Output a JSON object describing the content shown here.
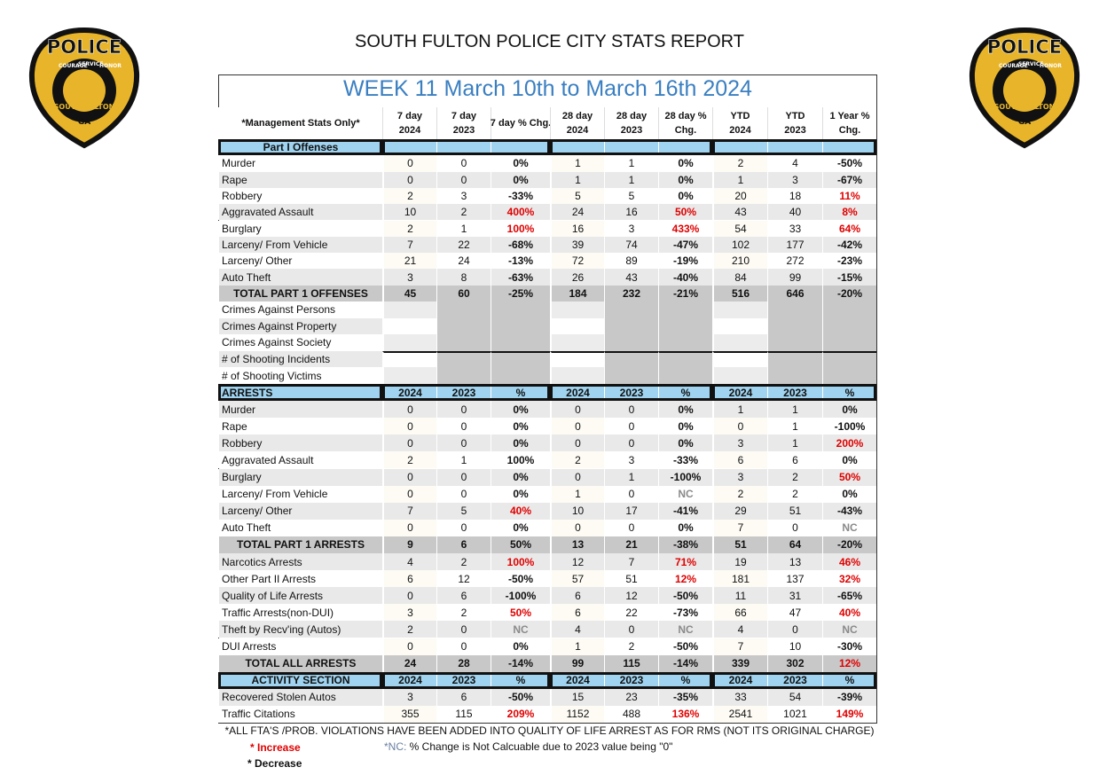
{
  "header": {
    "title": "SOUTH FULTON POLICE CITY STATS REPORT"
  },
  "logo": {
    "badge": "POLICE",
    "motto": [
      "COURAGE",
      "SERVICE",
      "HONOR"
    ],
    "city": "SOUTH FULTON",
    "state": "GA"
  },
  "table": {
    "week": "WEEK 11 March 10th to March 16th 2024",
    "corner": "*Management Stats Only*",
    "columns": [
      [
        "7 day",
        "2024"
      ],
      [
        "7 day",
        "2023"
      ],
      [
        "7 day % Chg."
      ],
      [
        "28 day",
        "2024"
      ],
      [
        "28 day",
        "2023"
      ],
      [
        "28 day %",
        "Chg."
      ],
      [
        "YTD",
        "2024"
      ],
      [
        "YTD",
        "2023"
      ],
      [
        "1 Year %",
        "Chg."
      ]
    ],
    "rows": [
      {
        "kind": "section",
        "label": "Part I Offenses",
        "cells": []
      },
      {
        "kind": "data",
        "label": "Murder",
        "cells": [
          "0",
          "0",
          "0%",
          "1",
          "1",
          "0%",
          "2",
          "4",
          "-50%"
        ]
      },
      {
        "kind": "data",
        "label": "Rape",
        "cells": [
          "0",
          "0",
          "0%",
          "1",
          "1",
          "0%",
          "1",
          "3",
          "-67%"
        ]
      },
      {
        "kind": "data",
        "label": "Robbery",
        "cells": [
          "2",
          "3",
          "-33%",
          "5",
          "5",
          "0%",
          "20",
          "18",
          "11%"
        ],
        "red": [
          8
        ]
      },
      {
        "kind": "data",
        "label": "Aggravated Assault",
        "cells": [
          "10",
          "2",
          "400%",
          "24",
          "16",
          "50%",
          "43",
          "40",
          "8%"
        ],
        "red": [
          2,
          5,
          8
        ]
      },
      {
        "kind": "data",
        "label": "Burglary",
        "cells": [
          "2",
          "1",
          "100%",
          "16",
          "3",
          "433%",
          "54",
          "33",
          "64%"
        ],
        "red": [
          2,
          5,
          8
        ]
      },
      {
        "kind": "data",
        "label": "Larceny/ From Vehicle",
        "cells": [
          "7",
          "22",
          "-68%",
          "39",
          "74",
          "-47%",
          "102",
          "177",
          "-42%"
        ]
      },
      {
        "kind": "data",
        "label": "Larceny/ Other",
        "cells": [
          "21",
          "24",
          "-13%",
          "72",
          "89",
          "-19%",
          "210",
          "272",
          "-23%"
        ]
      },
      {
        "kind": "data",
        "label": "Auto Theft",
        "cells": [
          "3",
          "8",
          "-63%",
          "26",
          "43",
          "-40%",
          "84",
          "99",
          "-15%"
        ]
      },
      {
        "kind": "total",
        "label": "TOTAL PART 1 OFFENSES",
        "cells": [
          "45",
          "60",
          "-25%",
          "184",
          "232",
          "-21%",
          "516",
          "646",
          "-20%"
        ]
      },
      {
        "kind": "blank",
        "label": "Crimes Against Persons",
        "cells": []
      },
      {
        "kind": "blank",
        "label": "Crimes Against Property",
        "cells": []
      },
      {
        "kind": "blank",
        "label": "Crimes Against Society",
        "cells": []
      },
      {
        "kind": "blank",
        "label": "# of Shooting Incidents",
        "cells": []
      },
      {
        "kind": "blank",
        "label": "# of Shooting Victims",
        "cells": []
      },
      {
        "kind": "section",
        "label": "ARRESTS",
        "cells": [
          "2024",
          "2023",
          "%",
          "2024",
          "2023",
          "%",
          "2024",
          "2023",
          "%"
        ]
      },
      {
        "kind": "data",
        "label": "Murder",
        "cells": [
          "0",
          "0",
          "0%",
          "0",
          "0",
          "0%",
          "1",
          "1",
          "0%"
        ]
      },
      {
        "kind": "data",
        "label": "Rape",
        "cells": [
          "0",
          "0",
          "0%",
          "0",
          "0",
          "0%",
          "0",
          "1",
          "-100%"
        ]
      },
      {
        "kind": "data",
        "label": "Robbery",
        "cells": [
          "0",
          "0",
          "0%",
          "0",
          "0",
          "0%",
          "3",
          "1",
          "200%"
        ],
        "red": [
          8
        ]
      },
      {
        "kind": "data",
        "label": "Aggravated Assault",
        "cells": [
          "2",
          "1",
          "100%",
          "2",
          "3",
          "-33%",
          "6",
          "6",
          "0%"
        ]
      },
      {
        "kind": "data",
        "label": "Burglary",
        "cells": [
          "0",
          "0",
          "0%",
          "0",
          "1",
          "-100%",
          "3",
          "2",
          "50%"
        ],
        "red": [
          8
        ]
      },
      {
        "kind": "data",
        "label": "Larceny/ From Vehicle",
        "cells": [
          "0",
          "0",
          "0%",
          "1",
          "0",
          "NC",
          "2",
          "2",
          "0%"
        ],
        "nc": [
          5
        ]
      },
      {
        "kind": "data",
        "label": "Larceny/ Other",
        "cells": [
          "7",
          "5",
          "40%",
          "10",
          "17",
          "-41%",
          "29",
          "51",
          "-43%"
        ],
        "red": [
          2
        ]
      },
      {
        "kind": "data",
        "label": "Auto Theft",
        "cells": [
          "0",
          "0",
          "0%",
          "0",
          "0",
          "0%",
          "7",
          "0",
          "NC"
        ],
        "nc": [
          8
        ]
      },
      {
        "kind": "total",
        "label": "TOTAL PART 1 ARRESTS",
        "cells": [
          "9",
          "6",
          "50%",
          "13",
          "21",
          "-38%",
          "51",
          "64",
          "-20%"
        ]
      },
      {
        "kind": "data",
        "label": "Narcotics Arrests",
        "cells": [
          "4",
          "2",
          "100%",
          "12",
          "7",
          "71%",
          "19",
          "13",
          "46%"
        ],
        "red": [
          2,
          5,
          8
        ]
      },
      {
        "kind": "data",
        "label": "Other Part II Arrests",
        "cells": [
          "6",
          "12",
          "-50%",
          "57",
          "51",
          "12%",
          "181",
          "137",
          "32%"
        ],
        "red": [
          5,
          8
        ]
      },
      {
        "kind": "data",
        "label": "Quality of Life Arrests",
        "cells": [
          "0",
          "6",
          "-100%",
          "6",
          "12",
          "-50%",
          "11",
          "31",
          "-65%"
        ]
      },
      {
        "kind": "data",
        "label": "Traffic Arrests(non-DUI)",
        "cells": [
          "3",
          "2",
          "50%",
          "6",
          "22",
          "-73%",
          "66",
          "47",
          "40%"
        ],
        "red": [
          2,
          8
        ]
      },
      {
        "kind": "data",
        "label": "Theft by Recv'ing (Autos)",
        "cells": [
          "2",
          "0",
          "NC",
          "4",
          "0",
          "NC",
          "4",
          "0",
          "NC"
        ],
        "nc": [
          2,
          5,
          8
        ]
      },
      {
        "kind": "data",
        "label": "DUI Arrests",
        "cells": [
          "0",
          "0",
          "0%",
          "1",
          "2",
          "-50%",
          "7",
          "10",
          "-30%"
        ]
      },
      {
        "kind": "total",
        "label": "TOTAL ALL ARRESTS",
        "cells": [
          "24",
          "28",
          "-14%",
          "99",
          "115",
          "-14%",
          "339",
          "302",
          "12%"
        ],
        "red": [
          8
        ]
      },
      {
        "kind": "section",
        "label": "ACTIVITY SECTION",
        "cells": [
          "2024",
          "2023",
          "%",
          "2024",
          "2023",
          "%",
          "2024",
          "2023",
          "%"
        ]
      },
      {
        "kind": "data",
        "label": "Recovered Stolen Autos",
        "cells": [
          "3",
          "6",
          "-50%",
          "15",
          "23",
          "-35%",
          "33",
          "54",
          "-39%"
        ]
      },
      {
        "kind": "data",
        "label": "Traffic Citations",
        "cells": [
          "355",
          "115",
          "209%",
          "1152",
          "488",
          "136%",
          "2541",
          "1021",
          "149%"
        ],
        "red": [
          2,
          5,
          8
        ]
      }
    ]
  },
  "footer": {
    "note": "*ALL FTA'S /PROB. VIOLATIONS HAVE BEEN ADDED INTO QUALITY OF LIFE ARREST AS FOR RMS (NOT ITS ORIGINAL CHARGE)",
    "increase": "* Increase",
    "decrease": "* Decrease",
    "nc_tag": "*NC:",
    "nc_text": " % Change is Not Calcuable due to 2023 value being \"0\""
  }
}
